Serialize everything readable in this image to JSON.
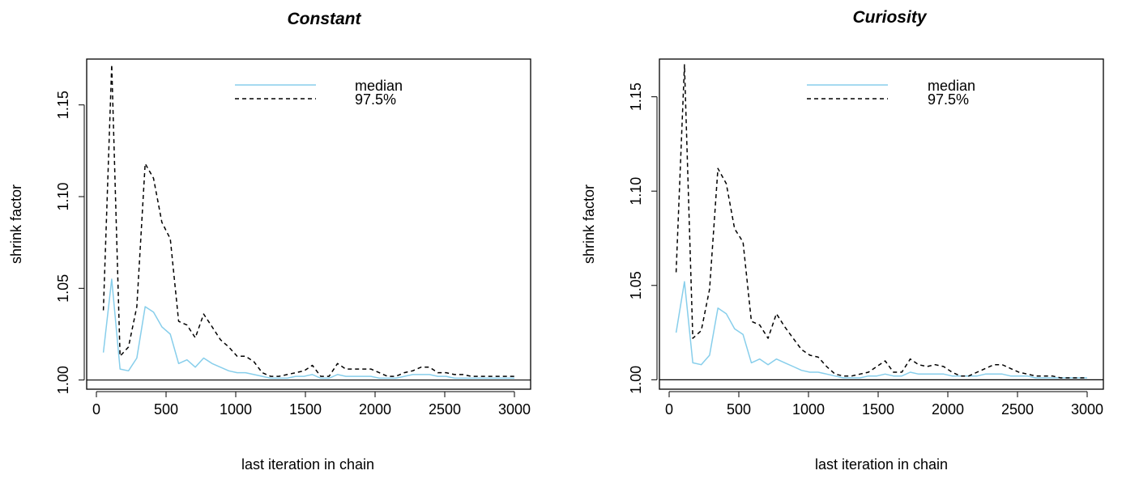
{
  "chart_data": [
    {
      "type": "line",
      "title": "Constant",
      "xlabel": "last iteration in chain",
      "ylabel": "shrink factor",
      "xlim": [
        0,
        3000
      ],
      "ylim": [
        0.995,
        1.175
      ],
      "xticks": [
        0,
        500,
        1000,
        1500,
        2000,
        2500,
        3000
      ],
      "xtick_labels": [
        "0",
        "500",
        "1000",
        "1500",
        "2000",
        "2500",
        "3000"
      ],
      "yticks": [
        1.0,
        1.05,
        1.1,
        1.15
      ],
      "ytick_labels": [
        "1.00",
        "1.05",
        "1.10",
        "1.15"
      ],
      "reference_line": 1.0,
      "legend_position": "top-center",
      "series": [
        {
          "name": "median",
          "color": "#87ceeb",
          "dash": "solid",
          "x": [
            50,
            110,
            170,
            230,
            290,
            350,
            410,
            470,
            530,
            590,
            650,
            710,
            770,
            830,
            890,
            950,
            1010,
            1070,
            1130,
            1190,
            1250,
            1310,
            1370,
            1430,
            1490,
            1550,
            1610,
            1670,
            1730,
            1790,
            1850,
            1910,
            1970,
            2030,
            2090,
            2150,
            2210,
            2270,
            2330,
            2390,
            2450,
            2510,
            2570,
            2630,
            2690,
            2750,
            2810,
            2870,
            2930,
            3000
          ],
          "y": [
            1.015,
            1.055,
            1.006,
            1.005,
            1.012,
            1.04,
            1.037,
            1.029,
            1.025,
            1.009,
            1.011,
            1.007,
            1.012,
            1.009,
            1.007,
            1.005,
            1.004,
            1.004,
            1.003,
            1.002,
            1.001,
            1.001,
            1.001,
            1.002,
            1.002,
            1.003,
            1.001,
            1.001,
            1.003,
            1.002,
            1.002,
            1.002,
            1.002,
            1.001,
            1.001,
            1.001,
            1.002,
            1.003,
            1.003,
            1.003,
            1.002,
            1.002,
            1.001,
            1.001,
            1.001,
            1.001,
            1.001,
            1.001,
            1.001,
            1.001
          ]
        },
        {
          "name": "97.5%",
          "color": "#000000",
          "dash": "dashed",
          "x": [
            50,
            110,
            170,
            230,
            290,
            350,
            410,
            470,
            530,
            590,
            650,
            710,
            770,
            830,
            890,
            950,
            1010,
            1070,
            1130,
            1190,
            1250,
            1310,
            1370,
            1430,
            1490,
            1550,
            1610,
            1670,
            1730,
            1790,
            1850,
            1910,
            1970,
            2030,
            2090,
            2150,
            2210,
            2270,
            2330,
            2390,
            2450,
            2510,
            2570,
            2630,
            2690,
            2750,
            2810,
            2870,
            2930,
            3000
          ],
          "y": [
            1.038,
            1.172,
            1.013,
            1.018,
            1.04,
            1.118,
            1.11,
            1.086,
            1.077,
            1.032,
            1.03,
            1.023,
            1.036,
            1.029,
            1.022,
            1.018,
            1.013,
            1.013,
            1.01,
            1.004,
            1.002,
            1.002,
            1.003,
            1.004,
            1.005,
            1.008,
            1.002,
            1.002,
            1.009,
            1.006,
            1.006,
            1.006,
            1.006,
            1.004,
            1.002,
            1.002,
            1.004,
            1.005,
            1.007,
            1.007,
            1.004,
            1.004,
            1.003,
            1.003,
            1.002,
            1.002,
            1.002,
            1.002,
            1.002,
            1.002
          ]
        }
      ]
    },
    {
      "type": "line",
      "title": "Curiosity",
      "xlabel": "last iteration in chain",
      "ylabel": "shrink factor",
      "xlim": [
        0,
        3000
      ],
      "ylim": [
        0.995,
        1.17
      ],
      "xticks": [
        0,
        500,
        1000,
        1500,
        2000,
        2500,
        3000
      ],
      "xtick_labels": [
        "0",
        "500",
        "1000",
        "1500",
        "2000",
        "2500",
        "3000"
      ],
      "yticks": [
        1.0,
        1.05,
        1.1,
        1.15
      ],
      "ytick_labels": [
        "1.00",
        "1.05",
        "1.10",
        "1.15"
      ],
      "reference_line": 1.0,
      "legend_position": "top-center",
      "series": [
        {
          "name": "median",
          "color": "#87ceeb",
          "dash": "solid",
          "x": [
            50,
            110,
            170,
            230,
            290,
            350,
            410,
            470,
            530,
            590,
            650,
            710,
            770,
            830,
            890,
            950,
            1010,
            1070,
            1130,
            1190,
            1250,
            1310,
            1370,
            1430,
            1490,
            1550,
            1610,
            1670,
            1730,
            1790,
            1850,
            1910,
            1970,
            2030,
            2090,
            2150,
            2210,
            2270,
            2330,
            2390,
            2450,
            2510,
            2570,
            2630,
            2690,
            2750,
            2810,
            2870,
            2930,
            3000
          ],
          "y": [
            1.025,
            1.052,
            1.009,
            1.008,
            1.013,
            1.038,
            1.035,
            1.027,
            1.024,
            1.009,
            1.011,
            1.008,
            1.011,
            1.009,
            1.007,
            1.005,
            1.004,
            1.004,
            1.003,
            1.002,
            1.001,
            1.001,
            1.001,
            1.002,
            1.002,
            1.003,
            1.002,
            1.002,
            1.004,
            1.003,
            1.003,
            1.003,
            1.003,
            1.002,
            1.002,
            1.002,
            1.002,
            1.003,
            1.003,
            1.003,
            1.002,
            1.002,
            1.002,
            1.001,
            1.001,
            1.001,
            1.001,
            1.001,
            1.001,
            1.001
          ]
        },
        {
          "name": "97.5%",
          "color": "#000000",
          "dash": "dashed",
          "x": [
            50,
            110,
            170,
            230,
            290,
            350,
            410,
            470,
            530,
            590,
            650,
            710,
            770,
            830,
            890,
            950,
            1010,
            1070,
            1130,
            1190,
            1250,
            1310,
            1370,
            1430,
            1490,
            1550,
            1610,
            1670,
            1730,
            1790,
            1850,
            1910,
            1970,
            2030,
            2090,
            2150,
            2210,
            2270,
            2330,
            2390,
            2450,
            2510,
            2570,
            2630,
            2690,
            2750,
            2810,
            2870,
            2930,
            3000
          ],
          "y": [
            1.057,
            1.167,
            1.022,
            1.026,
            1.048,
            1.112,
            1.104,
            1.08,
            1.073,
            1.031,
            1.029,
            1.022,
            1.035,
            1.028,
            1.022,
            1.016,
            1.013,
            1.012,
            1.007,
            1.003,
            1.002,
            1.002,
            1.003,
            1.004,
            1.007,
            1.01,
            1.004,
            1.004,
            1.011,
            1.008,
            1.007,
            1.008,
            1.007,
            1.004,
            1.002,
            1.002,
            1.004,
            1.006,
            1.008,
            1.008,
            1.006,
            1.004,
            1.003,
            1.002,
            1.002,
            1.002,
            1.001,
            1.001,
            1.001,
            1.001
          ]
        }
      ]
    }
  ]
}
